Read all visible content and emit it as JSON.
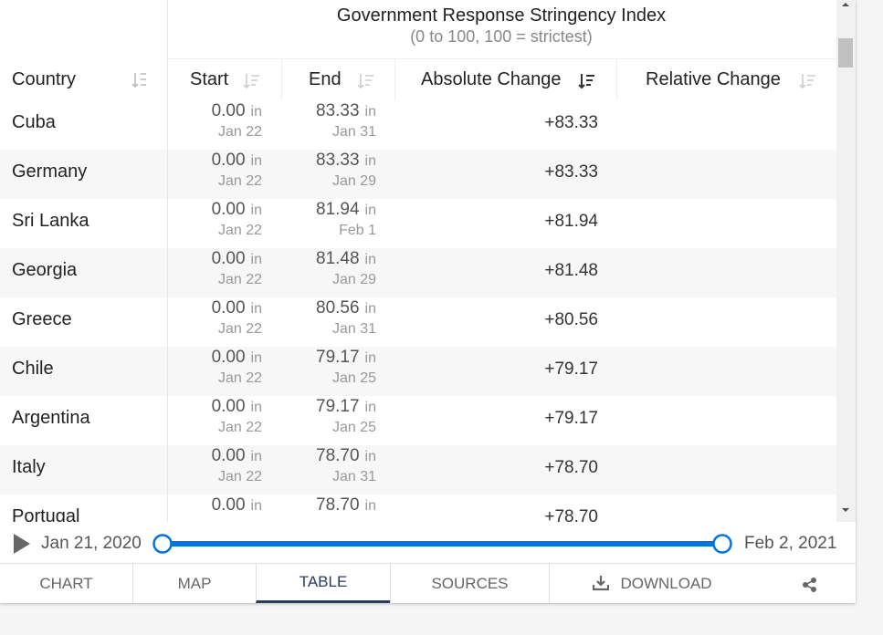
{
  "header": {
    "title": "Government Response Stringency Index",
    "subtitle": "(0 to 100, 100 = strictest)"
  },
  "table": {
    "columns": [
      "Country",
      "Start",
      "End",
      "Absolute Change",
      "Relative Change"
    ],
    "in_label": "in",
    "rows": [
      {
        "country": "Cuba",
        "start": "0.00",
        "start_date": "Jan 22",
        "end": "83.33",
        "end_date": "Jan 31",
        "absolute_change": "+83.33"
      },
      {
        "country": "Germany",
        "start": "0.00",
        "start_date": "Jan 22",
        "end": "83.33",
        "end_date": "Jan 29",
        "absolute_change": "+83.33"
      },
      {
        "country": "Sri Lanka",
        "start": "0.00",
        "start_date": "Jan 22",
        "end": "81.94",
        "end_date": "Feb 1",
        "absolute_change": "+81.94"
      },
      {
        "country": "Georgia",
        "start": "0.00",
        "start_date": "Jan 22",
        "end": "81.48",
        "end_date": "Jan 29",
        "absolute_change": "+81.48"
      },
      {
        "country": "Greece",
        "start": "0.00",
        "start_date": "Jan 22",
        "end": "80.56",
        "end_date": "Jan 31",
        "absolute_change": "+80.56"
      },
      {
        "country": "Chile",
        "start": "0.00",
        "start_date": "Jan 22",
        "end": "79.17",
        "end_date": "Jan 25",
        "absolute_change": "+79.17"
      },
      {
        "country": "Argentina",
        "start": "0.00",
        "start_date": "Jan 22",
        "end": "79.17",
        "end_date": "Jan 25",
        "absolute_change": "+79.17"
      },
      {
        "country": "Italy",
        "start": "0.00",
        "start_date": "Jan 22",
        "end": "78.70",
        "end_date": "Jan 31",
        "absolute_change": "+78.70"
      },
      {
        "country": "Portugal",
        "start": "0.00",
        "end": "78.70",
        "absolute_change": "+78.70"
      }
    ]
  },
  "timeline": {
    "start": "Jan 21, 2020",
    "end": "Feb 2, 2021"
  },
  "tabs": [
    "CHART",
    "MAP",
    "TABLE",
    "SOURCES",
    "DOWNLOAD"
  ]
}
